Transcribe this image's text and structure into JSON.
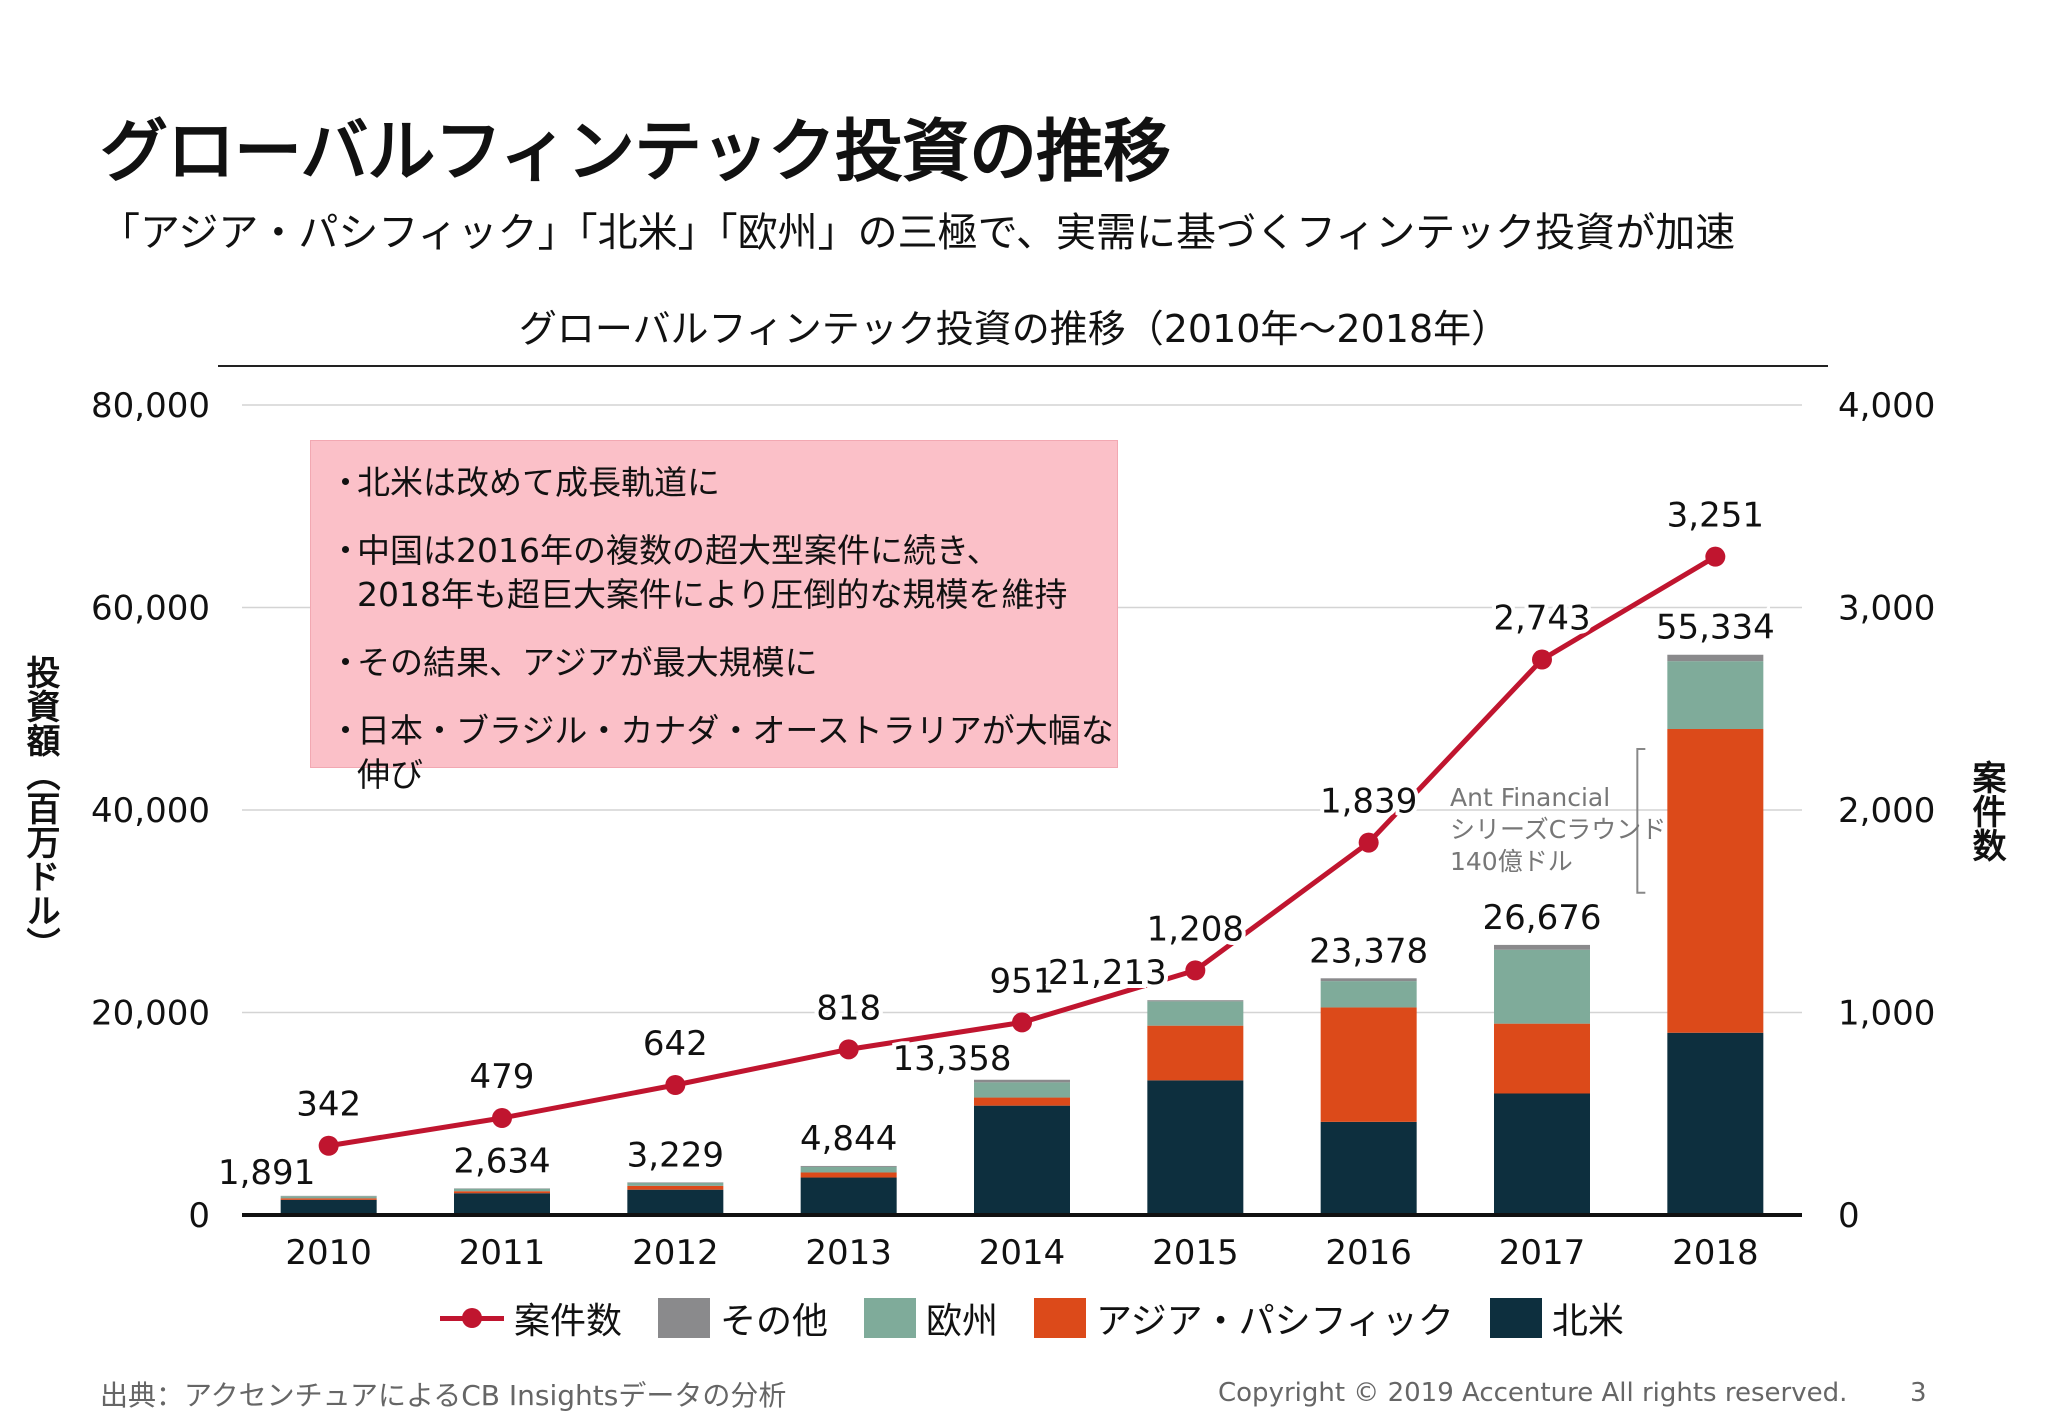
{
  "title": "グローバルフィンテック投資の推移",
  "subtitle": "「アジア・パシフィック」「北米」「欧州」の三極で、実需に基づくフィンテック投資が加速",
  "callout": {
    "items": [
      "北米は改めて成長軌道に",
      "中国は2016年の複数の超大型案件に続き、\n2018年も超巨大案件により圧倒的な規模を維持",
      "その結果、アジアが最大規模に",
      "日本・ブラジル・カナダ・オーストラリアが大幅な伸び"
    ],
    "bullet": "・"
  },
  "annotation": {
    "lines": [
      "Ant Financial",
      "シリーズCラウンド",
      "140億ドル"
    ]
  },
  "footer": {
    "source": "出典：アクセンチュアによるCB Insightsデータの分析",
    "copyright": "Copyright © 2019 Accenture  All rights reserved.",
    "page": "3"
  },
  "chart_data": {
    "type": "bar",
    "title": "グローバルフィンテック投資の推移（2010年～2018年）",
    "stacked": true,
    "ylabel": "投資額（百万ドル）",
    "y2label": "案件数",
    "categories": [
      "2010",
      "2011",
      "2012",
      "2013",
      "2014",
      "2015",
      "2016",
      "2017",
      "2018"
    ],
    "ylim": [
      0,
      80000
    ],
    "y2lim": [
      0,
      4000
    ],
    "yticks": [
      "0",
      "20,000",
      "40,000",
      "60,000",
      "80,000"
    ],
    "y2ticks": [
      "0",
      "1,000",
      "2,000",
      "3,000",
      "4,000"
    ],
    "grid": true,
    "legend_position": "bottom",
    "series": [
      {
        "name": "北米",
        "color": "#0d2f3e",
        "values": [
          1500,
          2150,
          2500,
          3700,
          10800,
          13300,
          9200,
          12000,
          18000
        ]
      },
      {
        "name": "アジア・パシフィック",
        "color": "#dc4a1a",
        "values": [
          150,
          200,
          380,
          500,
          800,
          5400,
          11300,
          6900,
          30000
        ]
      },
      {
        "name": "欧州",
        "color": "#7fab9a",
        "values": [
          200,
          250,
          300,
          550,
          1500,
          2400,
          2600,
          7300,
          6700
        ]
      },
      {
        "name": "その他",
        "color": "#8a8a8c",
        "values": [
          41,
          34,
          49,
          94,
          258,
          113,
          278,
          476,
          634
        ]
      }
    ],
    "totals": [
      1891,
      2634,
      3229,
      4844,
      13358,
      21213,
      23378,
      26676,
      55334
    ],
    "totals_labels": [
      "1,891",
      "2,634",
      "3,229",
      "4,844",
      "13,358",
      "21,213",
      "23,378",
      "26,676",
      "55,334"
    ],
    "line": {
      "name": "案件数",
      "color": "#c0152f",
      "axis": "right",
      "values": [
        342,
        479,
        642,
        818,
        951,
        1208,
        1839,
        2743,
        3251
      ],
      "labels": [
        "342",
        "479",
        "642",
        "818",
        "951",
        "1,208",
        "1,839",
        "2,743",
        "3,251"
      ]
    },
    "legend_order": [
      "案件数",
      "その他",
      "欧州",
      "アジア・パシフィック",
      "北米"
    ]
  }
}
